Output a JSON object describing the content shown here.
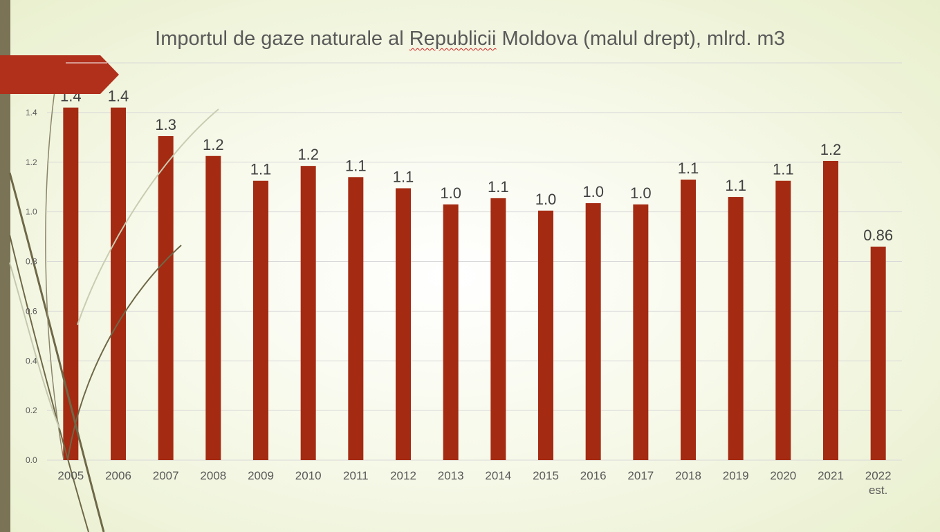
{
  "title_parts": [
    "Importul de gaze naturale al ",
    "Republicii",
    " Moldova (malul drept), mlrd. m3"
  ],
  "colors": {
    "bar": "#a52a12",
    "accent_arrow": "#b0301c",
    "strip": "#7a7355",
    "grid": "#d9d9d9"
  },
  "chart_data": {
    "type": "bar",
    "title": "Importul de gaze naturale al Republicii Moldova (malul drept), mlrd. m3",
    "categories": [
      "2005",
      "2006",
      "2007",
      "2008",
      "2009",
      "2010",
      "2011",
      "2012",
      "2013",
      "2014",
      "2015",
      "2016",
      "2017",
      "2018",
      "2019",
      "2020",
      "2021",
      "2022 est."
    ],
    "values": [
      1.42,
      1.42,
      1.305,
      1.225,
      1.125,
      1.185,
      1.14,
      1.095,
      1.03,
      1.055,
      1.005,
      1.035,
      1.03,
      1.13,
      1.06,
      1.125,
      1.205,
      0.86
    ],
    "data_labels": [
      "1.4",
      "1.4",
      "1.3",
      "1.2",
      "1.1",
      "1.2",
      "1.1",
      "1.1",
      "1.0",
      "1.1",
      "1.0",
      "1.0",
      "1.0",
      "1.1",
      "1.1",
      "1.1",
      "1.2",
      "0.86"
    ],
    "yticks": [
      "0.0",
      "0.2",
      "0.4",
      "0.6",
      "0.8",
      "1.0",
      "1.2",
      "1.4",
      "1.6"
    ],
    "ylim": [
      0,
      1.6
    ],
    "grid": true,
    "legend": "none",
    "xlabel": "",
    "ylabel": ""
  }
}
